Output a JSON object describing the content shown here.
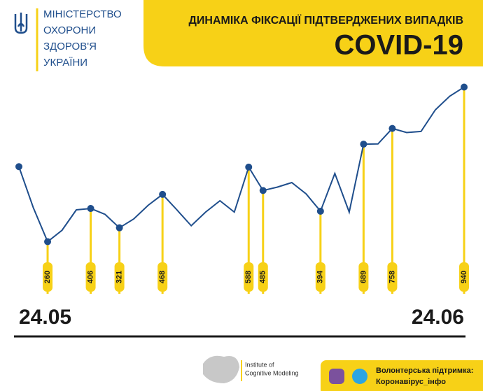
{
  "header": {
    "ministry": [
      "МІНІСТЕРСТВО",
      "ОХОРОНИ",
      "ЗДОРОВ'Я",
      "УКРАЇНИ"
    ]
  },
  "chart_data": {
    "type": "line",
    "title": "ДИНАМІКА ФІКСАЦІЇ ПІДТВЕРДЖЕНИХ ВИПАДКІВ",
    "subtitle": "COVID-19",
    "categories": [
      "24.05",
      null,
      null,
      null,
      null,
      null,
      null,
      null,
      null,
      null,
      null,
      null,
      null,
      null,
      null,
      null,
      null,
      null,
      null,
      null,
      null,
      null,
      null,
      null,
      null,
      null,
      null,
      null,
      null,
      null,
      null,
      "24.06"
    ],
    "values": [
      590,
      410,
      260,
      310,
      400,
      406,
      380,
      321,
      360,
      420,
      468,
      400,
      330,
      390,
      440,
      390,
      588,
      485,
      500,
      520,
      470,
      394,
      560,
      390,
      689,
      690,
      758,
      740,
      745,
      840,
      900,
      940
    ],
    "value_labels": [
      null,
      null,
      "260",
      null,
      null,
      "406",
      null,
      "321",
      null,
      null,
      "468",
      null,
      null,
      null,
      null,
      null,
      "588",
      "485",
      null,
      null,
      null,
      "394",
      null,
      null,
      "689",
      null,
      "758",
      null,
      null,
      null,
      null,
      "940"
    ],
    "highlight": [
      0,
      2,
      5,
      7,
      10,
      16,
      17,
      21,
      24,
      26,
      31
    ],
    "color": "#1f4e8c",
    "label_color": "#f7d117",
    "ylim": [
      200,
      960
    ]
  },
  "footer": {
    "institute": [
      "Institute of",
      "Cognitive Modeling"
    ],
    "support": [
      "Волонтерська підтримка:",
      "Коронавірус_інфо"
    ]
  }
}
